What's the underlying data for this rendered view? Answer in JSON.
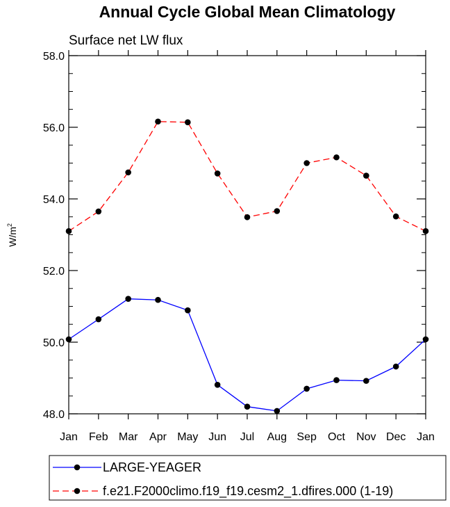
{
  "chart_data": {
    "type": "line",
    "title": "Annual Cycle Global Mean Climatology",
    "subtitle": "Surface net LW flux",
    "xlabel": "",
    "ylabel": "W/m",
    "ylabel_sup": "2",
    "ylim": [
      48.0,
      58.0
    ],
    "yticks": [
      48.0,
      50.0,
      52.0,
      54.0,
      56.0,
      58.0
    ],
    "ytick_labels": [
      "48.0",
      "50.0",
      "52.0",
      "54.0",
      "56.0",
      "58.0"
    ],
    "categories": [
      "Jan",
      "Feb",
      "Mar",
      "Apr",
      "May",
      "Jun",
      "Jul",
      "Aug",
      "Sep",
      "Oct",
      "Nov",
      "Dec",
      "Jan"
    ],
    "series": [
      {
        "name": "LARGE-YEAGER",
        "color": "#0000ff",
        "dash": "solid",
        "values": [
          50.08,
          50.64,
          51.21,
          51.18,
          50.89,
          48.81,
          48.2,
          48.08,
          48.7,
          48.94,
          48.92,
          49.32,
          50.08
        ]
      },
      {
        "name": "f.e21.F2000climo.f19_f19.cesm2_1.dfires.000 (1-19)",
        "color": "#ff0000",
        "dash": "dashed",
        "values": [
          53.1,
          53.65,
          54.74,
          56.16,
          56.14,
          54.71,
          53.49,
          53.66,
          55.0,
          55.16,
          54.65,
          53.51,
          53.1
        ]
      }
    ],
    "legend": "bottom"
  }
}
